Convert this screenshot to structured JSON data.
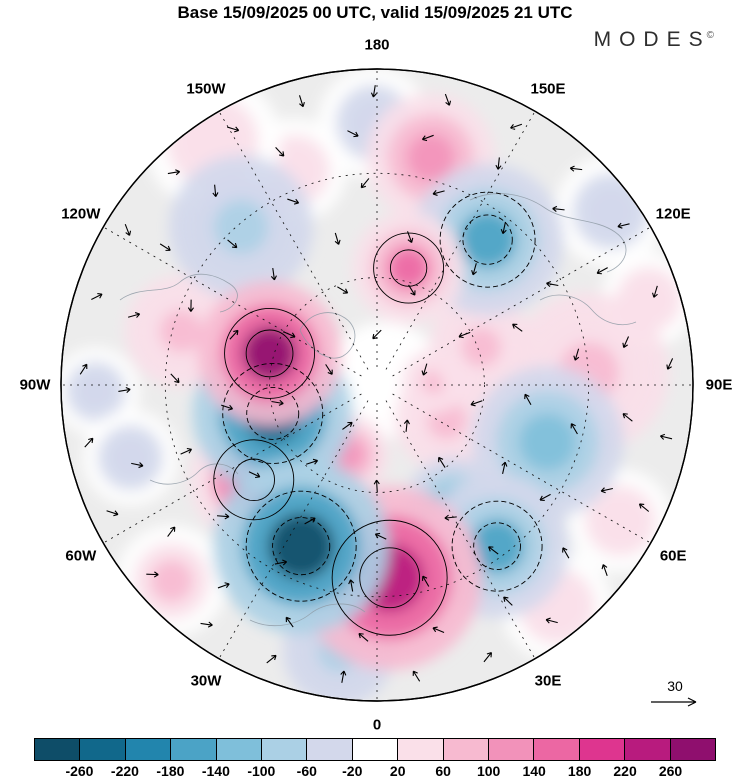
{
  "header": {
    "title": "Base 15/09/2025 00 UTC, valid 15/09/2025 21 UTC",
    "logo": "MODES",
    "logo_symbol": "©"
  },
  "map": {
    "background": "#ececec",
    "lat_circle_fracs": [
      0.34,
      0.67
    ],
    "lon_labels": [
      {
        "text": "180",
        "angle": 0
      },
      {
        "text": "150E",
        "angle": 30
      },
      {
        "text": "120E",
        "angle": 60
      },
      {
        "text": "90E",
        "angle": 90
      },
      {
        "text": "60E",
        "angle": 120
      },
      {
        "text": "30E",
        "angle": 150
      },
      {
        "text": "0",
        "angle": 180
      },
      {
        "text": "30W",
        "angle": 210
      },
      {
        "text": "60W",
        "angle": 240
      },
      {
        "text": "90W",
        "angle": 270
      },
      {
        "text": "120W",
        "angle": 300
      },
      {
        "text": "150W",
        "angle": 330
      }
    ]
  },
  "reference_arrow": {
    "label": "30"
  },
  "colorbar": {
    "tick_labels": [
      "-260",
      "-220",
      "-180",
      "-140",
      "-100",
      "-60",
      "-20",
      "20",
      "60",
      "100",
      "140",
      "180",
      "220",
      "260"
    ],
    "colors": [
      "#0e4d68",
      "#11688b",
      "#2285ad",
      "#4ba3c6",
      "#7fbfda",
      "#abd0e5",
      "#d3d8eb",
      "#ffffff",
      "#fae0e9",
      "#f7bad0",
      "#f292ba",
      "#ec67a3",
      "#de358f",
      "#b81b7e",
      "#8f0f6e"
    ]
  },
  "chart_data": {
    "type": "heatmap",
    "title": "Base 15/09/2025 00 UTC, valid 15/09/2025 21 UTC",
    "projection": "north-polar-stereographic",
    "legend_position": "bottom",
    "grid": "dashed graticule every 30 degrees longitude",
    "colorbar_boundaries": [
      -260,
      -220,
      -180,
      -140,
      -100,
      -60,
      -20,
      20,
      60,
      100,
      140,
      180,
      220,
      260
    ],
    "vector_reference": 30,
    "anomaly_centers": [
      {
        "x": -0.34,
        "y": -0.1,
        "value": 265,
        "size": 36
      },
      {
        "x": -0.33,
        "y": 0.09,
        "value": -235,
        "size": 40
      },
      {
        "x": -0.24,
        "y": 0.51,
        "value": -265,
        "size": 44
      },
      {
        "x": 0.04,
        "y": 0.61,
        "value": 235,
        "size": 46
      },
      {
        "x": -0.39,
        "y": 0.3,
        "value": 195,
        "size": 32
      },
      {
        "x": 0.35,
        "y": -0.46,
        "value": -155,
        "size": 38
      },
      {
        "x": 0.1,
        "y": -0.37,
        "value": 155,
        "size": 28
      },
      {
        "x": 0.17,
        "y": -0.72,
        "value": 115,
        "size": 32
      },
      {
        "x": -0.43,
        "y": -0.5,
        "value": -95,
        "size": 36
      },
      {
        "x": 0.38,
        "y": 0.51,
        "value": -150,
        "size": 36
      },
      {
        "x": 0.54,
        "y": 0.18,
        "value": -115,
        "size": 38
      },
      {
        "x": 0.67,
        "y": -0.04,
        "value": 95,
        "size": 40
      },
      {
        "x": -0.62,
        "y": -0.17,
        "value": 75,
        "size": 28
      },
      {
        "x": -0.52,
        "y": -0.77,
        "value": 55,
        "size": 34
      },
      {
        "x": -0.65,
        "y": 0.62,
        "value": 65,
        "size": 28
      },
      {
        "x": -0.09,
        "y": 0.22,
        "value": 125,
        "size": 20
      },
      {
        "x": 0.22,
        "y": 0.11,
        "value": 75,
        "size": 26
      },
      {
        "x": 0.33,
        "y": -0.12,
        "value": 85,
        "size": 26
      },
      {
        "x": 0.74,
        "y": -0.55,
        "value": -55,
        "size": 28
      },
      {
        "x": -0.12,
        "y": 0.84,
        "value": -75,
        "size": 28
      },
      {
        "x": 0.57,
        "y": 0.7,
        "value": 55,
        "size": 28
      },
      {
        "x": -0.78,
        "y": 0.23,
        "value": -55,
        "size": 24
      },
      {
        "x": 0.24,
        "y": 0.38,
        "value": -105,
        "size": 24
      },
      {
        "x": -0.01,
        "y": -0.83,
        "value": -45,
        "size": 28
      },
      {
        "x": 0.18,
        "y": -0.01,
        "value": 75,
        "size": 16
      },
      {
        "x": -0.26,
        "y": -0.68,
        "value": 45,
        "size": 26
      },
      {
        "x": 0.77,
        "y": 0.43,
        "value": 45,
        "size": 26
      },
      {
        "x": -0.89,
        "y": 0.02,
        "value": -35,
        "size": 22
      },
      {
        "x": 0.86,
        "y": -0.27,
        "value": 35,
        "size": 24
      }
    ]
  }
}
